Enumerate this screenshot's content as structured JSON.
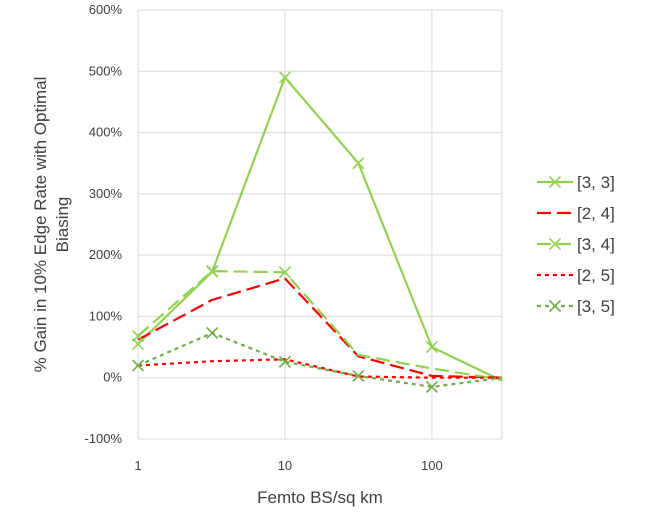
{
  "chart_data": {
    "type": "line",
    "xscale": "log",
    "xlim": [
      1,
      300
    ],
    "ylim": [
      -100,
      600
    ],
    "grid": true,
    "legend_placement": "right",
    "xlabel": "Femto BS/sq km",
    "ylabel_lines": [
      "% Gain in 10% Edge Rate with Optimal",
      "Biasing"
    ],
    "x_tick_labels": [
      {
        "value": 1,
        "label": "1"
      },
      {
        "value": 10,
        "label": "10"
      },
      {
        "value": 100,
        "label": "100"
      }
    ],
    "y_tick_labels": [
      {
        "value": 600,
        "label": "600%"
      },
      {
        "value": 500,
        "label": "500%"
      },
      {
        "value": 400,
        "label": "400%"
      },
      {
        "value": 300,
        "label": "300%"
      },
      {
        "value": 200,
        "label": "200%"
      },
      {
        "value": 100,
        "label": "100%"
      },
      {
        "value": 0,
        "label": "0%"
      },
      {
        "value": -100,
        "label": "-100%"
      }
    ],
    "series": [
      {
        "name": "[3, 3]",
        "color": "#92D050",
        "dash": "solid",
        "marker": "x",
        "points": [
          [
            1,
            55
          ],
          [
            3.2,
            173
          ],
          [
            10,
            490
          ],
          [
            31.6,
            350
          ],
          [
            100,
            50
          ],
          [
            300,
            -5
          ]
        ],
        "marker_count": 5
      },
      {
        "name": "[2, 4]",
        "color": "#FF0000",
        "dash": "longdash",
        "marker": "none",
        "points": [
          [
            1,
            62
          ],
          [
            3.2,
            127
          ],
          [
            10,
            162
          ],
          [
            31.6,
            35
          ],
          [
            100,
            3
          ],
          [
            300,
            0
          ]
        ]
      },
      {
        "name": "[3, 4]",
        "color": "#92D050",
        "dash": "longdash",
        "marker": "x",
        "points": [
          [
            1,
            68
          ],
          [
            3.2,
            174
          ],
          [
            10,
            172
          ],
          [
            31.6,
            37
          ],
          [
            100,
            15
          ],
          [
            300,
            -3
          ]
        ],
        "marker_count": 3
      },
      {
        "name": "[2, 5]",
        "color": "#FF0000",
        "dash": "shortdash",
        "marker": "none",
        "points": [
          [
            1,
            20
          ],
          [
            3.2,
            27
          ],
          [
            10,
            30
          ],
          [
            31.6,
            2
          ],
          [
            100,
            0
          ],
          [
            300,
            0
          ]
        ]
      },
      {
        "name": "[3, 5]",
        "color": "#70AD47",
        "dash": "shortdash",
        "marker": "x",
        "points": [
          [
            1,
            20
          ],
          [
            3.2,
            73
          ],
          [
            10,
            26
          ],
          [
            31.6,
            3
          ],
          [
            100,
            -15
          ],
          [
            300,
            0
          ]
        ],
        "marker_count": 5
      }
    ]
  }
}
